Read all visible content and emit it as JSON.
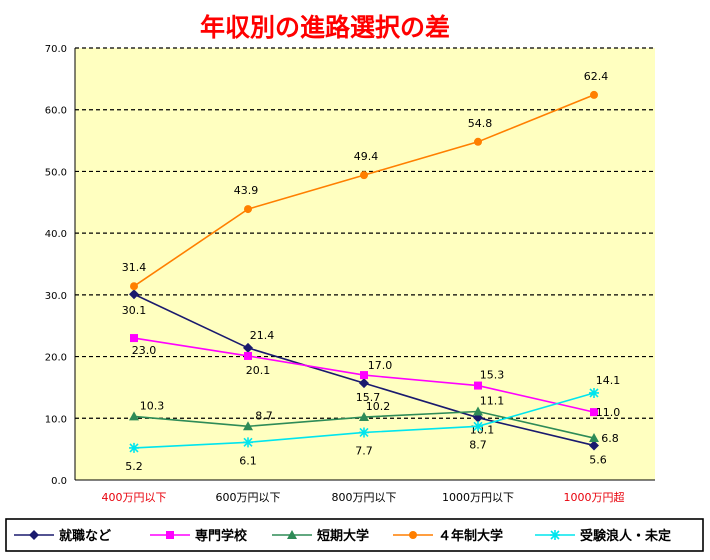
{
  "chart_data": {
    "type": "line",
    "title": "年収別の進路選択の差",
    "categories": [
      "400万円以下",
      "600万円以下",
      "800万円以下",
      "1000万円以下",
      "1000万円超"
    ],
    "category_label_colors": [
      "#e8000b",
      "#000000",
      "#000000",
      "#000000",
      "#e8000b"
    ],
    "ylim": [
      0,
      70
    ],
    "yticks": [
      "0.0",
      "10.0",
      "20.0",
      "30.0",
      "40.0",
      "50.0",
      "60.0",
      "70.0"
    ],
    "grid": true,
    "plot_background": "#ffffc0",
    "legend_position": "bottom",
    "series": [
      {
        "name": "就職など",
        "color": "#1a1a6e",
        "marker": "diamond",
        "values": [
          30.1,
          21.4,
          15.7,
          10.1,
          5.6
        ],
        "labels": [
          "30.1",
          "21.4",
          "15.7",
          "10.1",
          "5.6"
        ]
      },
      {
        "name": "専門学校",
        "color": "#ff00ff",
        "marker": "square",
        "values": [
          23.0,
          20.1,
          17.0,
          15.3,
          11.0
        ],
        "labels": [
          "23.0",
          "20.1",
          "17.0",
          "15.3",
          "11.0"
        ]
      },
      {
        "name": "短期大学",
        "color": "#2e8b57",
        "marker": "triangle",
        "values": [
          10.3,
          8.7,
          10.2,
          11.1,
          6.8
        ],
        "labels": [
          "10.3",
          "8.7",
          "10.2",
          "11.1",
          "6.8"
        ]
      },
      {
        "name": "４年制大学",
        "color": "#ff7f00",
        "marker": "circle",
        "values": [
          31.4,
          43.9,
          49.4,
          54.8,
          62.4
        ],
        "labels": [
          "31.4",
          "43.9",
          "49.4",
          "54.8",
          "62.4"
        ]
      },
      {
        "name": "受験浪人・未定",
        "color": "#00e5ee",
        "marker": "star",
        "values": [
          5.2,
          6.1,
          7.7,
          8.7,
          14.1
        ],
        "labels": [
          "5.2",
          "6.1",
          "7.7",
          "8.7",
          "14.1"
        ]
      }
    ]
  }
}
